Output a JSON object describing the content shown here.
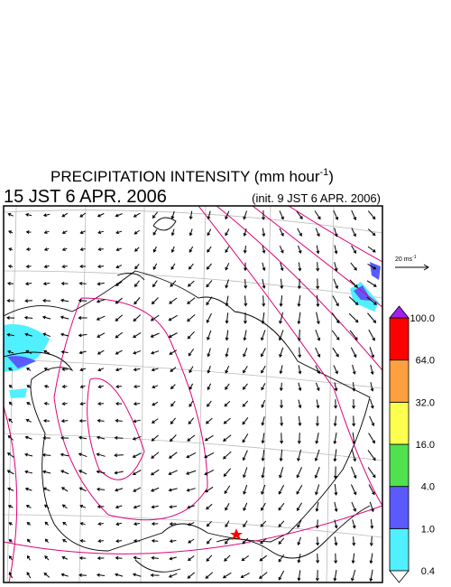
{
  "title": {
    "text": "PRECIPITATION INTENSITY (mm hour",
    "superscript": "-1",
    "close": ")"
  },
  "valid_time": "15 JST 6 APR. 2006",
  "init_time": "(init. 9 JST 6 APR. 2006)",
  "vector_scale": {
    "text": "20 ms",
    "superscript": "-1"
  },
  "colorbar": {
    "levels": [
      {
        "value": 0.4,
        "label": "0.4"
      },
      {
        "value": 1,
        "label": "1.0"
      },
      {
        "value": 4,
        "label": "4.0"
      },
      {
        "value": 16,
        "label": "16.0"
      },
      {
        "value": 32,
        "label": "32.0"
      },
      {
        "value": 64,
        "label": "64.0"
      },
      {
        "value": 100,
        "label": "100.0"
      }
    ],
    "colors": [
      "#50f0ff",
      "#5a5aff",
      "#50e050",
      "#ffff50",
      "#ffa040",
      "#ff0000"
    ],
    "under_color": "#ffffff",
    "over_color": "#a020f0"
  }
}
